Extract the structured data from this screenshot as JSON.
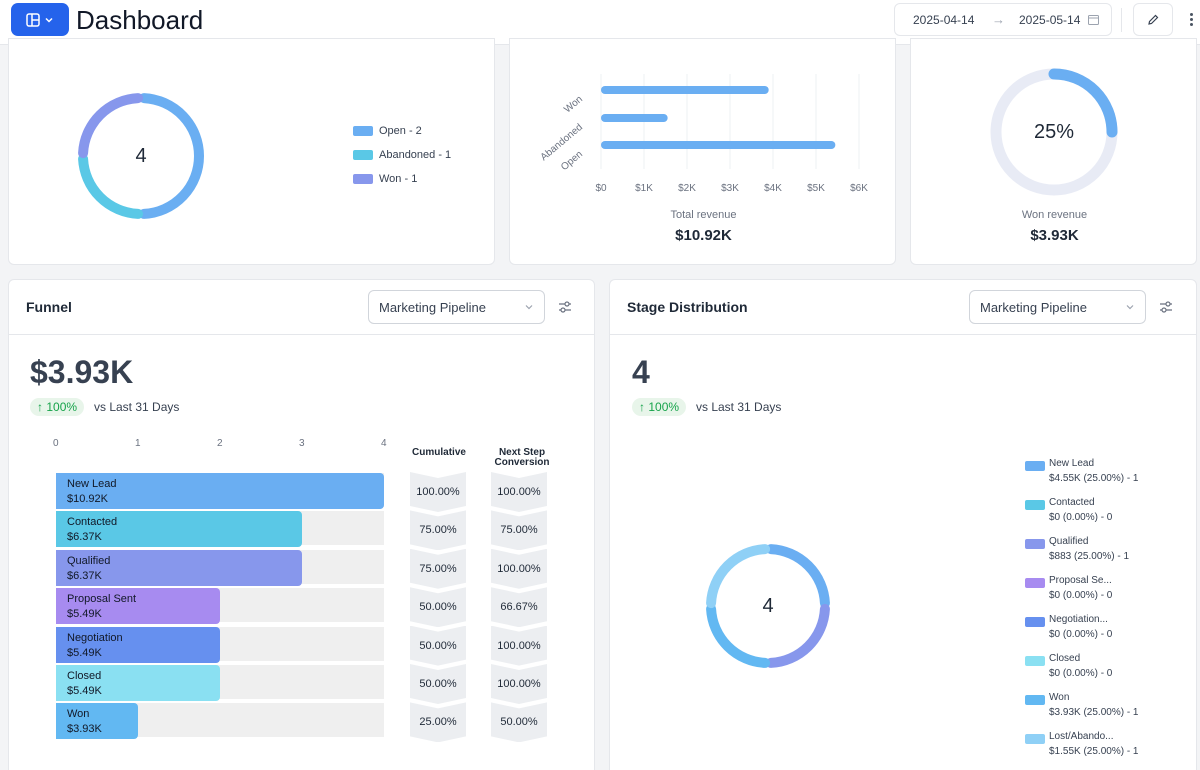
{
  "header": {
    "title": "Dashboard",
    "date_start": "2025-04-14",
    "date_end": "2025-05-14"
  },
  "status_card": {
    "total": "4",
    "legend": [
      {
        "label": "Open - 2",
        "color": "#6aaef2"
      },
      {
        "label": "Abandoned - 1",
        "color": "#5ac8e6"
      },
      {
        "label": "Won - 1",
        "color": "#8797ec"
      }
    ],
    "slices": [
      {
        "name": "Open",
        "value": 2,
        "color": "#6aaef2"
      },
      {
        "name": "Abandoned",
        "value": 1,
        "color": "#5ac8e6"
      },
      {
        "name": "Won",
        "value": 1,
        "color": "#8797ec"
      }
    ]
  },
  "revenue_card": {
    "caption": "Total revenue",
    "value": "$10.92K"
  },
  "won_card": {
    "percent": "25%",
    "percent_value": 25,
    "caption": "Won revenue",
    "value": "$3.93K"
  },
  "funnel": {
    "title": "Funnel",
    "pipeline": "Marketing Pipeline",
    "kpi": "$3.93K",
    "change": "100%",
    "vs_text": "vs Last 31 Days",
    "axis_ticks": [
      "0",
      "1",
      "2",
      "3",
      "4"
    ],
    "col_cumulative": "Cumulative",
    "col_next_1": "Next Step",
    "col_next_2": "Conversion",
    "stages": [
      {
        "name": "New Lead",
        "value": "$10.92K",
        "count": 4,
        "color": "#6aaef2",
        "cumulative": "100.00%",
        "next": "100.00%"
      },
      {
        "name": "Contacted",
        "value": "$6.37K",
        "count": 3,
        "color": "#5ac8e6",
        "cumulative": "75.00%",
        "next": "75.00%"
      },
      {
        "name": "Qualified",
        "value": "$6.37K",
        "count": 3,
        "color": "#8797ec",
        "cumulative": "75.00%",
        "next": "100.00%"
      },
      {
        "name": "Proposal Sent",
        "value": "$5.49K",
        "count": 2,
        "color": "#a78bf0",
        "cumulative": "50.00%",
        "next": "66.67%"
      },
      {
        "name": "Negotiation",
        "value": "$5.49K",
        "count": 2,
        "color": "#6690ef",
        "cumulative": "50.00%",
        "next": "100.00%"
      },
      {
        "name": "Closed",
        "value": "$5.49K",
        "count": 2,
        "color": "#8ae0f2",
        "cumulative": "50.00%",
        "next": "100.00%"
      },
      {
        "name": "Won",
        "value": "$3.93K",
        "count": 1,
        "color": "#62b8f2",
        "cumulative": "25.00%",
        "next": "50.00%"
      }
    ]
  },
  "stage": {
    "title": "Stage Distribution",
    "pipeline": "Marketing Pipeline",
    "kpi": "4",
    "change": "100%",
    "vs_text": "vs Last 31 Days",
    "center": "4",
    "legend": [
      {
        "name": "New Lead",
        "detail": "$4.55K (25.00%) - 1",
        "color": "#6aaef2",
        "count": 1
      },
      {
        "name": "Contacted",
        "detail": "$0 (0.00%) - 0",
        "color": "#5ac8e6",
        "count": 0
      },
      {
        "name": "Qualified",
        "detail": "$883 (25.00%) - 1",
        "color": "#8797ec",
        "count": 1
      },
      {
        "name": "Proposal Se...",
        "detail": "$0 (0.00%) - 0",
        "color": "#a78bf0",
        "count": 0
      },
      {
        "name": "Negotiation...",
        "detail": "$0 (0.00%) - 0",
        "color": "#6690ef",
        "count": 0
      },
      {
        "name": "Closed",
        "detail": "$0 (0.00%) - 0",
        "color": "#8ae0f2",
        "count": 0
      },
      {
        "name": "Won",
        "detail": "$3.93K (25.00%) - 1",
        "color": "#62b8f2",
        "count": 1
      },
      {
        "name": "Lost/Abando...",
        "detail": "$1.55K (25.00%) - 1",
        "color": "#8fd0f6",
        "count": 1
      }
    ]
  },
  "chart_data": [
    {
      "type": "pie",
      "categories": [
        "Open",
        "Abandoned",
        "Won"
      ],
      "values": [
        2,
        1,
        1
      ]
    },
    {
      "type": "bar",
      "categories": [
        "Won",
        "Abandoned",
        "Open"
      ],
      "values": [
        3.9,
        1.55,
        5.45
      ],
      "xlabel": "Total revenue",
      "xlim": [
        0,
        6
      ],
      "x_ticks": [
        "$0",
        "$1K",
        "$2K",
        "$3K",
        "$4K",
        "$5K",
        "$6K"
      ]
    },
    {
      "type": "pie",
      "categories": [
        "Won"
      ],
      "values": [
        25
      ]
    },
    {
      "type": "bar",
      "categories": [
        "New Lead",
        "Contacted",
        "Qualified",
        "Proposal Sent",
        "Negotiation",
        "Closed",
        "Won"
      ],
      "values": [
        4,
        3,
        3,
        2,
        2,
        2,
        1
      ],
      "xlim": [
        0,
        4
      ]
    },
    {
      "type": "pie",
      "categories": [
        "New Lead",
        "Qualified",
        "Won",
        "Lost/Abando..."
      ],
      "values": [
        1,
        1,
        1,
        1
      ]
    }
  ]
}
